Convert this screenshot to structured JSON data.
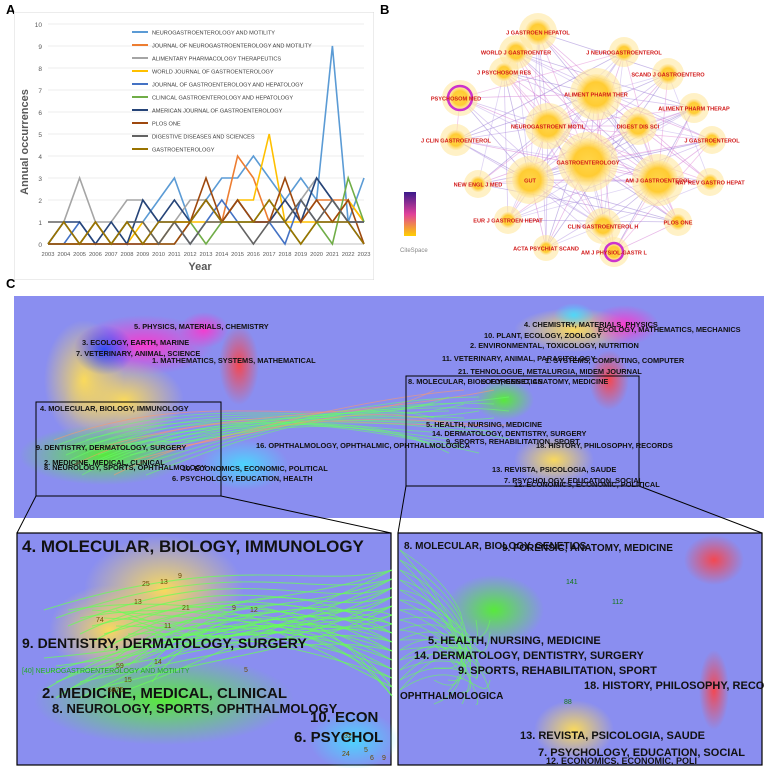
{
  "labels": {
    "a": "A",
    "b": "B",
    "c": "C"
  },
  "chart_data": [
    {
      "type": "line",
      "xlabel": "Year",
      "ylabel": "Annual occurrences",
      "ylim": [
        0,
        10
      ],
      "categories": [
        "2003",
        "2004",
        "2005",
        "2006",
        "2007",
        "2008",
        "2009",
        "2010",
        "2011",
        "2012",
        "2013",
        "2014",
        "2015",
        "2016",
        "2017",
        "2018",
        "2019",
        "2020",
        "2021",
        "2022",
        "2023"
      ],
      "yticks": [
        "0",
        "1",
        "2",
        "3",
        "4",
        "5",
        "6",
        "7",
        "8",
        "9",
        "10"
      ],
      "legend_position": "top",
      "series": [
        {
          "name": "NEUROGASTROENTEROLOGY AND MOTILITY",
          "color": "#5b9bd5",
          "values": [
            0,
            0,
            0,
            0,
            0,
            1,
            1,
            2,
            3,
            1,
            2,
            3,
            3,
            4,
            3,
            2,
            3,
            2,
            9,
            1,
            3
          ]
        },
        {
          "name": "JOURNAL OF NEUROGASTROENTEROLOGY AND MOTILITY",
          "color": "#ed7d31",
          "values": [
            0,
            0,
            0,
            0,
            0,
            0,
            0,
            0,
            1,
            1,
            2,
            1,
            4,
            3,
            1,
            2,
            1,
            2,
            2,
            2,
            1
          ]
        },
        {
          "name": "ALIMENTARY PHARMACOLOGY THERAPEUTICS",
          "color": "#a5a5a5",
          "values": [
            0,
            1,
            3,
            1,
            1,
            2,
            2,
            1,
            1,
            2,
            2,
            1,
            2,
            1,
            1,
            1,
            2,
            3,
            2,
            1,
            1
          ]
        },
        {
          "name": "WORLD JOURNAL OF GASTROENTEROLOGY",
          "color": "#ffc000",
          "values": [
            0,
            0,
            0,
            1,
            0,
            0,
            1,
            0,
            1,
            1,
            1,
            1,
            2,
            2,
            5,
            1,
            1,
            1,
            1,
            2,
            1
          ]
        },
        {
          "name": "JOURNAL OF GASTROENTEROLOGY AND HEPATOLOGY",
          "color": "#4472c4",
          "values": [
            0,
            0,
            1,
            0,
            0,
            0,
            0,
            1,
            1,
            0,
            1,
            2,
            1,
            1,
            1,
            0,
            2,
            1,
            1,
            1,
            0
          ]
        },
        {
          "name": "CLINICAL GASTROENTEROLOGY AND HEPATOLOGY",
          "color": "#70ad47",
          "values": [
            0,
            0,
            0,
            0,
            0,
            1,
            0,
            0,
            0,
            1,
            0,
            1,
            1,
            1,
            2,
            1,
            0,
            1,
            0,
            3,
            1
          ]
        },
        {
          "name": "AMERICAN JOURNAL OF GASTROENTEROLOGY",
          "color": "#264478",
          "values": [
            0,
            1,
            1,
            0,
            1,
            0,
            2,
            1,
            2,
            1,
            2,
            1,
            2,
            1,
            1,
            2,
            1,
            3,
            2,
            1,
            1
          ]
        },
        {
          "name": "PLOS ONE",
          "color": "#9e480e",
          "values": [
            0,
            0,
            0,
            0,
            0,
            0,
            0,
            0,
            0,
            1,
            3,
            1,
            2,
            1,
            1,
            3,
            1,
            2,
            1,
            2,
            0
          ]
        },
        {
          "name": "DIGESTIVE DISEASES AND SCIENCES",
          "color": "#636363",
          "values": [
            1,
            1,
            0,
            1,
            0,
            1,
            1,
            0,
            1,
            0,
            1,
            1,
            1,
            0,
            1,
            1,
            2,
            1,
            2,
            1,
            1
          ]
        },
        {
          "name": "GASTROENTEROLOGY",
          "color": "#997300",
          "values": [
            0,
            1,
            0,
            1,
            0,
            1,
            0,
            1,
            1,
            1,
            2,
            1,
            1,
            1,
            2,
            1,
            0,
            1,
            1,
            1,
            0
          ]
        }
      ]
    }
  ],
  "network": {
    "software": "CiteSpace",
    "nodes": [
      {
        "label": "J GASTROEN HEPATOL",
        "r": 13
      },
      {
        "label": "WORLD J GASTROENTER",
        "r": 11
      },
      {
        "label": "J NEUROGASTROENTEROL",
        "r": 9
      },
      {
        "label": "J PSYCHOSOM RES",
        "r": 9
      },
      {
        "label": "SCAND J GASTROENTERO",
        "r": 10
      },
      {
        "label": "ALIMENT PHARM THER",
        "r": 20
      },
      {
        "label": "PSYCHOSOM MED",
        "r": 12
      },
      {
        "label": "ALIMENT PHARM THERAP",
        "r": 9
      },
      {
        "label": "NEUROGASTROENT MOTIL",
        "r": 17
      },
      {
        "label": "DIGEST DIS SCI",
        "r": 13
      },
      {
        "label": "J CLIN GASTROENTEROL",
        "r": 10
      },
      {
        "label": "J GASTROENTEROL",
        "r": 8
      },
      {
        "label": "GASTROENTEROLOGY",
        "r": 24
      },
      {
        "label": "NEW ENGL J MED",
        "r": 8
      },
      {
        "label": "GUT",
        "r": 18
      },
      {
        "label": "AM J GASTROENTEROL",
        "r": 20
      },
      {
        "label": "NAT REV GASTRO HEPAT",
        "r": 8
      },
      {
        "label": "EUR J GASTROEN HEPAT",
        "r": 8
      },
      {
        "label": "CLIN GASTROENTEROL H",
        "r": 12
      },
      {
        "label": "PLOS ONE",
        "r": 8
      },
      {
        "label": "ACTA PSYCHIAT SCAND",
        "r": 7
      },
      {
        "label": "AM J PHYSIOL-GASTR L",
        "r": 9
      }
    ]
  },
  "overlay": {
    "left_clusters": [
      "5. PHYSICS, MATERIALS, CHEMISTRY",
      "3. ECOLOGY, EARTH, MARINE",
      "7. VETERINARY, ANIMAL, SCIENCE",
      "1. MATHEMATICS, SYSTEMS, MATHEMATICAL",
      "4. MOLECULAR, BIOLOGY, IMMUNOLOGY",
      "9. DENTISTRY, DERMATOLOGY, SURGERY",
      "2. MEDICINE, MEDICAL, CLINICAL",
      "8. NEUROLOGY, SPORTS, OPHTHALMOLOGY",
      "10. ECONOMICS, ECONOMIC, POLITICAL",
      "6. PSYCHOLOGY, EDUCATION, HEALTH"
    ],
    "center_cluster": "16. OPHTHALMOLOGY, OPHTHALMIC, OPHTHALMOLOGICA",
    "right_clusters": [
      "4. CHEMISTRY, MATERIALS, PHYSICS",
      "10. PLANT, ECOLOGY, ZOOLOGY",
      "2. ENVIRONMENTAL, TOXICOLOGY, NUTRITION",
      "11. VETERINARY, ANIMAL, PARASITOLOGY",
      "1. SYSTEMS, COMPUTING, COMPUTER",
      "21. TEHNOLOGUE, METALURGIA, MIDEM JOURNAL",
      "8. MOLECULAR, BIOLOGY, GENETICS",
      "5. HEALTH, NURSING, MEDICINE",
      "14. DERMATOLOGY, DENTISTRY, SURGERY",
      "9. SPORTS, REHABILITATION, SPORT",
      "18. HISTORY, PHILOSOPHY, RECORDS",
      "13. REVISTA, PSICOLOGIA, SAUDE",
      "7. PSYCHOLOGY, EDUCATION, SOCIAL"
    ],
    "overlap_right": "12. ECONOMICS, ECONOMIC, POLITICAL",
    "overlap_right_top": "ECOLOGY, MATHEMATICS, MECHANICS",
    "overlap_right_mid": "9. FORENSIC, ANATOMY, MEDICINE",
    "zoom_left": {
      "lines": [
        "4. MOLECULAR, BIOLOGY, IMMUNOLOGY",
        "9. DENTISTRY, DERMATOLOGY, SURGERY",
        "2. MEDICINE, MEDICAL, CLINICAL",
        "8. NEUROLOGY, SPORTS, OPHTHALMOLOGY",
        "10. ECON",
        "6. PSYCHOL"
      ],
      "small_label": "[40] NEUROGASTROENTEROLOGY AND MOTILITY",
      "numbers": [
        "9",
        "13",
        "25",
        "13",
        "21",
        "74",
        "11",
        "9",
        "12",
        "14",
        "59",
        "15",
        "6875",
        "5",
        "32",
        "24",
        "5",
        "6",
        "9"
      ]
    },
    "zoom_right": {
      "lines": [
        "8. MOLECULAR, BIOLOGY, GENETICS",
        "9. FORENSIC, ANATOMY, MEDICINE",
        "5. HEALTH, NURSING, MEDICINE",
        "14. DERMATOLOGY, DENTISTRY, SURGERY",
        "9. SPORTS, REHABILITATION, SPORT",
        "18. HISTORY, PHILOSOPHY, RECO",
        "13. REVISTA, PSICOLOGIA, SAUDE",
        "7. PSYCHOLOGY, EDUCATION, SOCIAL",
        "12. ECONOMICS, ECONOMIC, POLI",
        "OPHTHALMOLOGICA"
      ],
      "numbers": [
        "141",
        "112",
        "88"
      ]
    }
  }
}
